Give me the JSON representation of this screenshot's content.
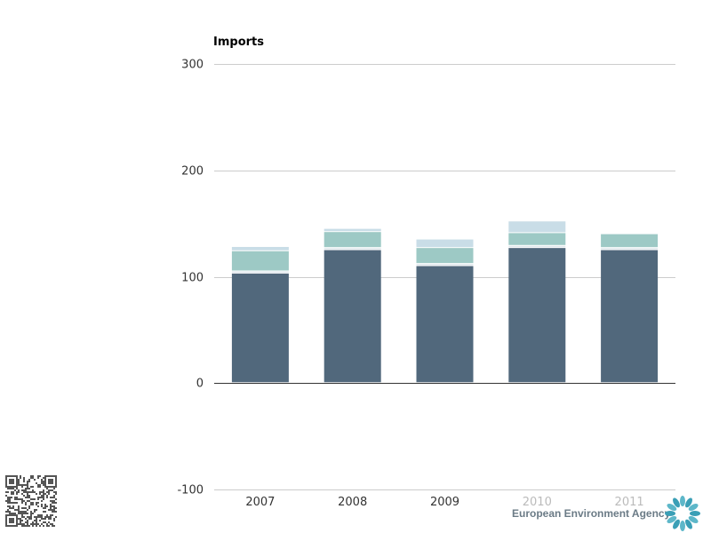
{
  "chart_data": {
    "type": "bar",
    "stacked": true,
    "title": "Imports",
    "xlabel": "",
    "ylabel": "",
    "categories": [
      "2007",
      "2008",
      "2009",
      "2010",
      "2011"
    ],
    "muted_categories": [
      "2010",
      "2011"
    ],
    "ylim": [
      -100,
      300
    ],
    "yticks": [
      -100,
      0,
      100,
      200,
      300
    ],
    "grid": true,
    "series": [
      {
        "color": "#51687c",
        "values": [
          103,
          125,
          110,
          127,
          125
        ]
      },
      {
        "color": "#dfe7ec",
        "values": [
          2,
          2,
          2,
          2,
          2
        ]
      },
      {
        "color": "#9dc9c5",
        "values": [
          19,
          15,
          15,
          12,
          13
        ]
      },
      {
        "color": "#c9dde7",
        "values": [
          4,
          3,
          8,
          11,
          0
        ]
      }
    ]
  },
  "branding": {
    "agency_name": "European Environment Agency",
    "logo_icon": "eea-sun-icon",
    "qr_icon": "qr-code-icon"
  }
}
